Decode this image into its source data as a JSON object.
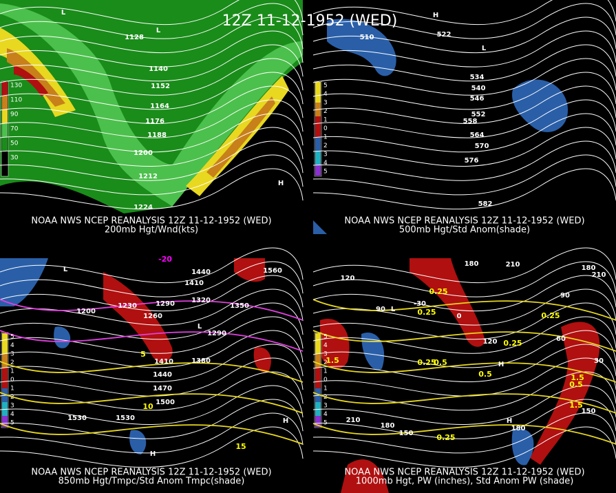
{
  "title": "12Z 11-12-1952 (WED)",
  "panels": [
    {
      "source": "NOAA NWS NCEP REANALYSIS 12Z 11-12-1952 (WED)",
      "caption": "200mb Hgt/Wnd(kts)",
      "legend": [
        "130",
        "110",
        "90",
        "70",
        "50",
        "30"
      ],
      "labels": [
        "1128",
        "1140",
        "1152",
        "1164",
        "1176",
        "1188",
        "1200",
        "1212",
        "1224",
        "L",
        "L",
        "H"
      ]
    },
    {
      "source": "NOAA NWS NCEP REANALYSIS 12Z 11-12-1952 (WED)",
      "caption": "500mb Hgt/Std Anom(shade)",
      "legend": [
        "5",
        "4",
        "3",
        "2",
        "1",
        "0",
        "1",
        "2",
        "3",
        "4",
        "5"
      ],
      "labels": [
        "510",
        "522",
        "534",
        "540",
        "546",
        "552",
        "558",
        "564",
        "570",
        "576",
        "582",
        "H",
        "L"
      ]
    },
    {
      "source": "NOAA NWS NCEP REANALYSIS 12Z 11-12-1952 (WED)",
      "caption": "850mb Hgt/Tmpc/Std Anom Tmpc(shade)",
      "legend": [
        "5",
        "4",
        "3",
        "2",
        "1",
        "0",
        "1",
        "2",
        "3",
        "4",
        "5"
      ],
      "labels": [
        "1440",
        "1410",
        "1320",
        "1350",
        "1230",
        "1290",
        "1260",
        "1200",
        "1380",
        "1410",
        "1440",
        "1470",
        "1500",
        "1530",
        "1530",
        "1560",
        "1290",
        "L",
        "L",
        "H",
        "H"
      ],
      "temps": [
        "-20",
        "15",
        "10",
        "5"
      ]
    },
    {
      "source": "NOAA NWS NCEP REANALYSIS 12Z 11-12-1952 (WED)",
      "caption": "1000mb Hgt, PW (inches), Std Anom PW (shade)",
      "legend": [
        "5",
        "4",
        "3",
        "2",
        "1",
        "0",
        "1",
        "2",
        "3",
        "4",
        "5"
      ],
      "labels": [
        "180",
        "210",
        "120",
        "90",
        "-30",
        "0",
        "60",
        "120",
        "210",
        "180",
        "150",
        "180",
        "150",
        "180",
        "210",
        "90",
        "30",
        "L",
        "H",
        "H"
      ],
      "temps": [
        "0.25",
        "0.25",
        "0.25",
        "0.5",
        "0.25",
        "0.5",
        "1.5",
        "1.5",
        "1.5",
        "0.25",
        "0.5",
        "0.25"
      ]
    }
  ]
}
